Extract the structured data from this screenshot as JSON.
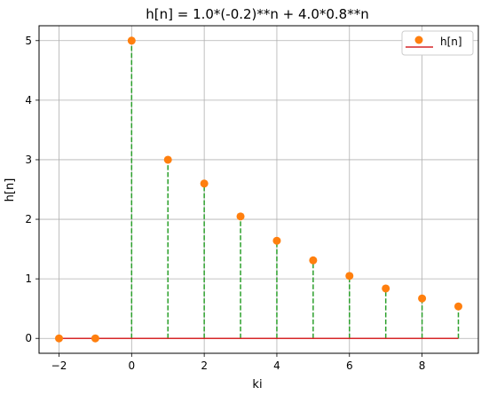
{
  "chart_data": {
    "type": "stem",
    "title": "h[n] = 1.0*(-0.2)**n + 4.0*0.8**n",
    "xlabel": "ki",
    "ylabel": "h[n]",
    "x": [
      -2,
      -1,
      0,
      1,
      2,
      3,
      4,
      5,
      6,
      7,
      8,
      9
    ],
    "series": [
      {
        "name": "h[n]",
        "values": [
          0,
          0,
          5.0,
          3.0,
          2.6,
          2.048,
          1.64,
          1.311,
          1.049,
          0.839,
          0.671,
          0.537
        ]
      }
    ],
    "xlim": [
      -2.55,
      9.55
    ],
    "ylim": [
      -0.25,
      5.25
    ],
    "xticks": [
      -2,
      0,
      2,
      4,
      6,
      8
    ],
    "xtick_labels": [
      "−2",
      "0",
      "2",
      "4",
      "6",
      "8"
    ],
    "yticks": [
      0,
      1,
      2,
      3,
      4,
      5
    ],
    "ytick_labels": [
      "0",
      "1",
      "2",
      "3",
      "4",
      "5"
    ],
    "grid": true,
    "legend_position": "top-right",
    "colors": {
      "marker": "#ff7f0e",
      "stem": "#2ca02c",
      "baseline": "#d62728",
      "grid": "#b0b0b0"
    }
  }
}
